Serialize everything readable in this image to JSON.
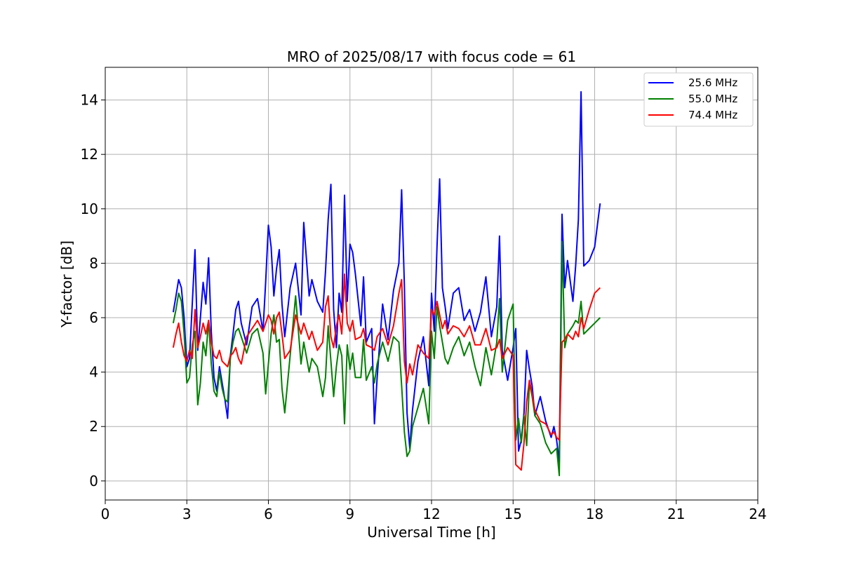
{
  "chart_data": {
    "type": "line",
    "title": "MRO of 2025/08/17 with focus code = 61",
    "xlabel": "Universal Time [h]",
    "ylabel": "Y-factor [dB]",
    "xlim": [
      0,
      24
    ],
    "ylim": [
      -0.7,
      15.2
    ],
    "xticks": [
      0,
      3,
      6,
      9,
      12,
      15,
      18,
      21,
      24
    ],
    "yticks": [
      0,
      2,
      4,
      6,
      8,
      10,
      12,
      14
    ],
    "grid": true,
    "legend_position": "top-right",
    "series": [
      {
        "name": "25.6 MHz",
        "color": "#0000ff",
        "x": [
          2.5,
          2.6,
          2.7,
          2.8,
          2.9,
          3.0,
          3.1,
          3.2,
          3.3,
          3.4,
          3.5,
          3.6,
          3.7,
          3.8,
          3.9,
          4.0,
          4.1,
          4.2,
          4.3,
          4.4,
          4.5,
          4.6,
          4.7,
          4.8,
          4.9,
          5.0,
          5.2,
          5.4,
          5.6,
          5.8,
          5.9,
          6.0,
          6.1,
          6.2,
          6.3,
          6.4,
          6.5,
          6.6,
          6.8,
          7.0,
          7.2,
          7.3,
          7.5,
          7.6,
          7.8,
          8.0,
          8.1,
          8.2,
          8.3,
          8.4,
          8.5,
          8.6,
          8.7,
          8.8,
          8.9,
          9.0,
          9.1,
          9.2,
          9.4,
          9.5,
          9.6,
          9.8,
          9.9,
          10.0,
          10.2,
          10.4,
          10.6,
          10.8,
          10.9,
          11.0,
          11.1,
          11.2,
          11.3,
          11.5,
          11.7,
          11.9,
          12.0,
          12.1,
          12.2,
          12.3,
          12.4,
          12.5,
          12.6,
          12.8,
          13.0,
          13.2,
          13.4,
          13.6,
          13.8,
          14.0,
          14.2,
          14.4,
          14.5,
          14.6,
          14.8,
          15.0,
          15.1,
          15.2,
          15.3,
          15.4,
          15.5,
          15.6,
          15.7,
          15.8,
          16.0,
          16.2,
          16.4,
          16.5,
          16.6,
          16.7,
          16.8,
          16.9,
          17.0,
          17.2,
          17.3,
          17.4,
          17.5,
          17.6,
          17.8,
          18.0,
          18.2
        ],
        "y": [
          6.2,
          6.8,
          7.4,
          7.1,
          6.0,
          4.2,
          4.5,
          6.5,
          8.5,
          4.8,
          6.0,
          7.3,
          6.5,
          8.2,
          5.5,
          3.8,
          3.3,
          4.2,
          3.6,
          3.0,
          2.3,
          4.6,
          5.4,
          6.3,
          6.6,
          5.8,
          5.0,
          6.4,
          6.7,
          5.5,
          7.3,
          9.4,
          8.6,
          6.8,
          7.8,
          8.5,
          6.5,
          5.3,
          7.1,
          8.0,
          6.1,
          9.5,
          6.8,
          7.4,
          6.6,
          6.2,
          7.7,
          9.6,
          10.9,
          6.3,
          4.9,
          6.9,
          6.2,
          10.5,
          6.6,
          8.7,
          8.4,
          7.6,
          5.7,
          7.5,
          5.1,
          5.6,
          2.1,
          3.8,
          6.5,
          5.2,
          7.0,
          8.0,
          10.7,
          7.2,
          2.5,
          1.2,
          2.6,
          4.4,
          5.3,
          3.5,
          6.9,
          5.5,
          8.6,
          11.1,
          7.1,
          6.4,
          5.6,
          6.9,
          7.1,
          5.9,
          6.3,
          5.5,
          6.2,
          7.5,
          5.3,
          6.4,
          9.0,
          4.8,
          3.7,
          4.9,
          5.6,
          1.1,
          1.5,
          2.5,
          4.8,
          4.1,
          3.5,
          2.4,
          3.1,
          2.2,
          1.6,
          2.0,
          1.5,
          0.7,
          9.8,
          7.1,
          8.1,
          6.6,
          7.9,
          9.6,
          14.3,
          7.9,
          8.1,
          8.6,
          10.2
        ]
      },
      {
        "name": "55.0 MHz",
        "color": "#008000",
        "x": [
          2.5,
          2.6,
          2.7,
          2.8,
          2.9,
          3.0,
          3.1,
          3.2,
          3.3,
          3.4,
          3.5,
          3.6,
          3.7,
          3.8,
          3.9,
          4.0,
          4.1,
          4.2,
          4.3,
          4.4,
          4.5,
          4.6,
          4.7,
          4.8,
          4.9,
          5.0,
          5.2,
          5.4,
          5.6,
          5.8,
          5.9,
          6.0,
          6.1,
          6.2,
          6.3,
          6.4,
          6.5,
          6.6,
          6.8,
          7.0,
          7.2,
          7.3,
          7.5,
          7.6,
          7.8,
          8.0,
          8.1,
          8.2,
          8.3,
          8.4,
          8.5,
          8.6,
          8.7,
          8.8,
          8.9,
          9.0,
          9.1,
          9.2,
          9.4,
          9.5,
          9.6,
          9.8,
          9.9,
          10.0,
          10.2,
          10.4,
          10.6,
          10.8,
          10.9,
          11.0,
          11.1,
          11.2,
          11.3,
          11.5,
          11.7,
          11.9,
          12.0,
          12.1,
          12.2,
          12.3,
          12.4,
          12.5,
          12.6,
          12.8,
          13.0,
          13.2,
          13.4,
          13.6,
          13.8,
          14.0,
          14.2,
          14.4,
          14.5,
          14.6,
          14.8,
          15.0,
          15.1,
          15.2,
          15.3,
          15.4,
          15.5,
          15.6,
          15.7,
          15.8,
          16.0,
          16.2,
          16.4,
          16.5,
          16.6,
          16.7,
          16.8,
          16.9,
          17.0,
          17.2,
          17.3,
          17.4,
          17.5,
          17.6,
          17.8,
          18.0,
          18.2
        ],
        "y": [
          5.8,
          6.3,
          6.9,
          6.6,
          5.4,
          3.6,
          3.8,
          5.0,
          5.5,
          2.8,
          3.6,
          5.1,
          4.6,
          5.9,
          4.3,
          3.3,
          3.1,
          4.0,
          3.4,
          3.0,
          2.9,
          4.5,
          5.1,
          5.5,
          5.6,
          5.3,
          4.7,
          5.4,
          5.6,
          4.7,
          3.2,
          4.3,
          5.4,
          6.1,
          5.1,
          5.2,
          3.4,
          2.5,
          4.6,
          6.8,
          4.3,
          5.1,
          4.0,
          4.5,
          4.2,
          3.1,
          3.8,
          5.7,
          4.4,
          3.1,
          4.2,
          5.0,
          4.6,
          2.1,
          5.0,
          4.1,
          4.7,
          3.8,
          3.8,
          5.2,
          3.7,
          4.2,
          3.6,
          4.3,
          5.1,
          4.4,
          5.3,
          5.1,
          3.5,
          1.8,
          0.9,
          1.1,
          2.0,
          2.7,
          3.4,
          2.1,
          5.5,
          4.5,
          6.4,
          5.7,
          5.1,
          4.5,
          4.3,
          4.9,
          5.3,
          4.6,
          5.1,
          4.2,
          3.5,
          4.9,
          3.9,
          5.1,
          6.7,
          4.0,
          5.9,
          6.5,
          1.5,
          2.3,
          1.4,
          2.4,
          1.3,
          3.6,
          3.1,
          2.4,
          2.1,
          1.4,
          1.0,
          1.1,
          1.2,
          0.2,
          8.8,
          4.9,
          5.4,
          5.7,
          5.9,
          5.8,
          6.6,
          5.4,
          5.6,
          5.8,
          6.0
        ]
      },
      {
        "name": "74.4 MHz",
        "color": "#ff0000",
        "x": [
          2.5,
          2.6,
          2.7,
          2.8,
          2.9,
          3.0,
          3.1,
          3.2,
          3.3,
          3.4,
          3.5,
          3.6,
          3.7,
          3.8,
          3.9,
          4.0,
          4.1,
          4.2,
          4.3,
          4.4,
          4.5,
          4.6,
          4.7,
          4.8,
          4.9,
          5.0,
          5.2,
          5.4,
          5.6,
          5.8,
          5.9,
          6.0,
          6.1,
          6.2,
          6.3,
          6.4,
          6.5,
          6.6,
          6.8,
          7.0,
          7.2,
          7.3,
          7.5,
          7.6,
          7.8,
          8.0,
          8.1,
          8.2,
          8.3,
          8.4,
          8.5,
          8.6,
          8.7,
          8.8,
          8.9,
          9.0,
          9.1,
          9.2,
          9.4,
          9.5,
          9.6,
          9.8,
          9.9,
          10.0,
          10.2,
          10.4,
          10.6,
          10.8,
          10.9,
          11.0,
          11.1,
          11.2,
          11.3,
          11.5,
          11.7,
          11.9,
          12.0,
          12.1,
          12.2,
          12.3,
          12.4,
          12.5,
          12.6,
          12.8,
          13.0,
          13.2,
          13.4,
          13.6,
          13.8,
          14.0,
          14.2,
          14.4,
          14.5,
          14.6,
          14.8,
          15.0,
          15.1,
          15.2,
          15.3,
          15.4,
          15.5,
          15.6,
          15.7,
          15.8,
          16.0,
          16.2,
          16.4,
          16.5,
          16.6,
          16.7,
          16.8,
          16.9,
          17.0,
          17.2,
          17.3,
          17.4,
          17.5,
          17.6,
          17.8,
          18.0,
          18.2
        ],
        "y": [
          4.9,
          5.4,
          5.8,
          5.1,
          4.6,
          4.4,
          4.8,
          4.5,
          6.3,
          4.9,
          5.3,
          5.8,
          5.4,
          5.9,
          5.1,
          4.6,
          4.5,
          4.8,
          4.4,
          4.3,
          4.2,
          4.6,
          4.7,
          4.9,
          4.5,
          4.3,
          5.3,
          5.6,
          5.9,
          5.5,
          5.8,
          6.1,
          5.9,
          5.4,
          6.0,
          6.2,
          5.4,
          4.5,
          4.8,
          6.1,
          5.4,
          5.8,
          5.2,
          5.5,
          4.8,
          5.1,
          6.4,
          6.8,
          5.3,
          4.9,
          5.7,
          6.1,
          5.4,
          7.6,
          5.8,
          5.5,
          5.9,
          5.2,
          5.3,
          5.6,
          5.0,
          4.9,
          4.8,
          5.3,
          5.6,
          5.0,
          5.7,
          6.9,
          7.4,
          4.4,
          3.6,
          4.3,
          3.9,
          5.0,
          4.7,
          4.5,
          6.3,
          6.1,
          6.6,
          6.1,
          5.6,
          5.9,
          5.4,
          5.7,
          5.6,
          5.3,
          5.7,
          5.0,
          5.0,
          5.6,
          4.8,
          4.9,
          5.2,
          4.5,
          4.9,
          4.6,
          0.6,
          0.5,
          0.4,
          1.4,
          2.9,
          3.7,
          3.2,
          2.6,
          2.2,
          2.1,
          1.7,
          1.8,
          1.6,
          1.5,
          5.1,
          5.2,
          5.4,
          5.2,
          5.5,
          5.3,
          6.0,
          5.6,
          6.3,
          6.9,
          7.1
        ]
      }
    ]
  }
}
